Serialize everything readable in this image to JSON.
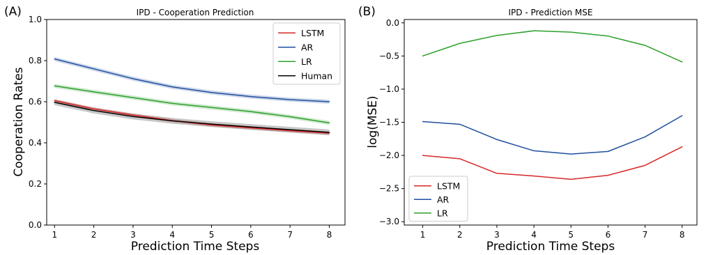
{
  "chart_data": [
    {
      "panel_label": "(A)",
      "type": "line",
      "title": "IPD - Cooperation Prediction",
      "xlabel": "Prediction Time Steps",
      "ylabel": "Cooperation Rates",
      "x": [
        1,
        2,
        3,
        4,
        5,
        6,
        7,
        8
      ],
      "xlim": [
        0.8,
        8.4
      ],
      "ylim": [
        0.0,
        1.0
      ],
      "xticks": [
        "1",
        "2",
        "3",
        "4",
        "5",
        "6",
        "7",
        "8"
      ],
      "yticks": [
        "0.0",
        "0.2",
        "0.4",
        "0.6",
        "0.8",
        "1.0"
      ],
      "ytick_values": [
        0.0,
        0.2,
        0.4,
        0.6,
        0.8,
        1.0
      ],
      "legend_position": "top-right",
      "shaded_band": true,
      "series": [
        {
          "name": "LSTM",
          "color": "#d62728",
          "values": [
            0.605,
            0.565,
            0.535,
            0.508,
            0.487,
            0.473,
            0.459,
            0.447
          ],
          "band": 0.008
        },
        {
          "name": "AR",
          "color": "#1f4e9e",
          "values": [
            0.808,
            0.76,
            0.712,
            0.672,
            0.645,
            0.625,
            0.61,
            0.6
          ],
          "band": 0.01
        },
        {
          "name": "LR",
          "color": "#2ca02c",
          "values": [
            0.677,
            0.648,
            0.62,
            0.592,
            0.572,
            0.552,
            0.527,
            0.497
          ],
          "band": 0.01
        },
        {
          "name": "Human",
          "color": "#000000",
          "values": [
            0.597,
            0.557,
            0.528,
            0.507,
            0.491,
            0.477,
            0.464,
            0.451
          ],
          "band": 0.014
        }
      ]
    },
    {
      "panel_label": "(B)",
      "type": "line",
      "title": "IPD - Prediction MSE",
      "xlabel": "Prediction Time Steps",
      "ylabel": "log(MSE)",
      "x": [
        1,
        2,
        3,
        4,
        5,
        6,
        7,
        8
      ],
      "xlim": [
        0.5,
        8.4
      ],
      "ylim": [
        -3.05,
        0.05
      ],
      "xticks": [
        "1",
        "2",
        "3",
        "4",
        "5",
        "6",
        "7",
        "8"
      ],
      "yticks": [
        "0.0",
        "−0.5",
        "−1.0",
        "−1.5",
        "−2.0",
        "−2.5",
        "−3.0"
      ],
      "ytick_values": [
        0.0,
        -0.5,
        -1.0,
        -1.5,
        -2.0,
        -2.5,
        -3.0
      ],
      "legend_position": "bottom-left",
      "series": [
        {
          "name": "LSTM",
          "color": "#d62728",
          "values": [
            -2.0,
            -2.05,
            -2.27,
            -2.31,
            -2.36,
            -2.3,
            -2.15,
            -1.87
          ]
        },
        {
          "name": "AR",
          "color": "#1f4e9e",
          "values": [
            -1.49,
            -1.53,
            -1.76,
            -1.93,
            -1.98,
            -1.94,
            -1.72,
            -1.4
          ]
        },
        {
          "name": "LR",
          "color": "#2ca02c",
          "values": [
            -0.5,
            -0.31,
            -0.19,
            -0.12,
            -0.14,
            -0.2,
            -0.34,
            -0.59
          ]
        }
      ]
    }
  ]
}
